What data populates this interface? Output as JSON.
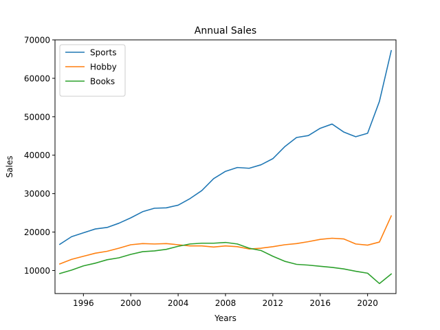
{
  "chart_data": {
    "type": "line",
    "title": "Annual Sales",
    "xlabel": "Years",
    "ylabel": "Sales",
    "xlim": [
      1993.6,
      2022.4
    ],
    "ylim": [
      4000,
      70000
    ],
    "xticks": [
      1996,
      2000,
      2004,
      2008,
      2012,
      2016,
      2020
    ],
    "yticks": [
      10000,
      20000,
      30000,
      40000,
      50000,
      60000,
      70000
    ],
    "x": [
      1994,
      1995,
      1996,
      1997,
      1998,
      1999,
      2000,
      2001,
      2002,
      2003,
      2004,
      2005,
      2006,
      2007,
      2008,
      2009,
      2010,
      2011,
      2012,
      2013,
      2014,
      2015,
      2016,
      2017,
      2018,
      2019,
      2020,
      2021,
      2022
    ],
    "legend_position": "top-left",
    "grid": false,
    "series": [
      {
        "name": "Sports",
        "color": "#1f77b4",
        "values": [
          16800,
          18800,
          19800,
          20800,
          21200,
          22300,
          23700,
          25300,
          26200,
          26300,
          27000,
          28700,
          30800,
          33900,
          35800,
          36800,
          36600,
          37500,
          39100,
          42200,
          44600,
          45100,
          47000,
          48100,
          46000,
          44800,
          45700,
          54000,
          67200
        ]
      },
      {
        "name": "Hobby",
        "color": "#ff7f0e",
        "values": [
          11700,
          12900,
          13700,
          14500,
          15000,
          15800,
          16700,
          17000,
          16900,
          17000,
          16700,
          16400,
          16400,
          16100,
          16400,
          16200,
          15600,
          15800,
          16200,
          16700,
          17000,
          17500,
          18100,
          18400,
          18200,
          16900,
          16600,
          17400,
          24200
        ]
      },
      {
        "name": "Books",
        "color": "#2ca02c",
        "values": [
          9200,
          10100,
          11200,
          11900,
          12800,
          13300,
          14200,
          14900,
          15100,
          15500,
          16300,
          16900,
          17100,
          17100,
          17300,
          16900,
          15800,
          15200,
          13700,
          12400,
          11600,
          11400,
          11100,
          10800,
          10400,
          9800,
          9300,
          6600,
          9100
        ]
      }
    ]
  }
}
